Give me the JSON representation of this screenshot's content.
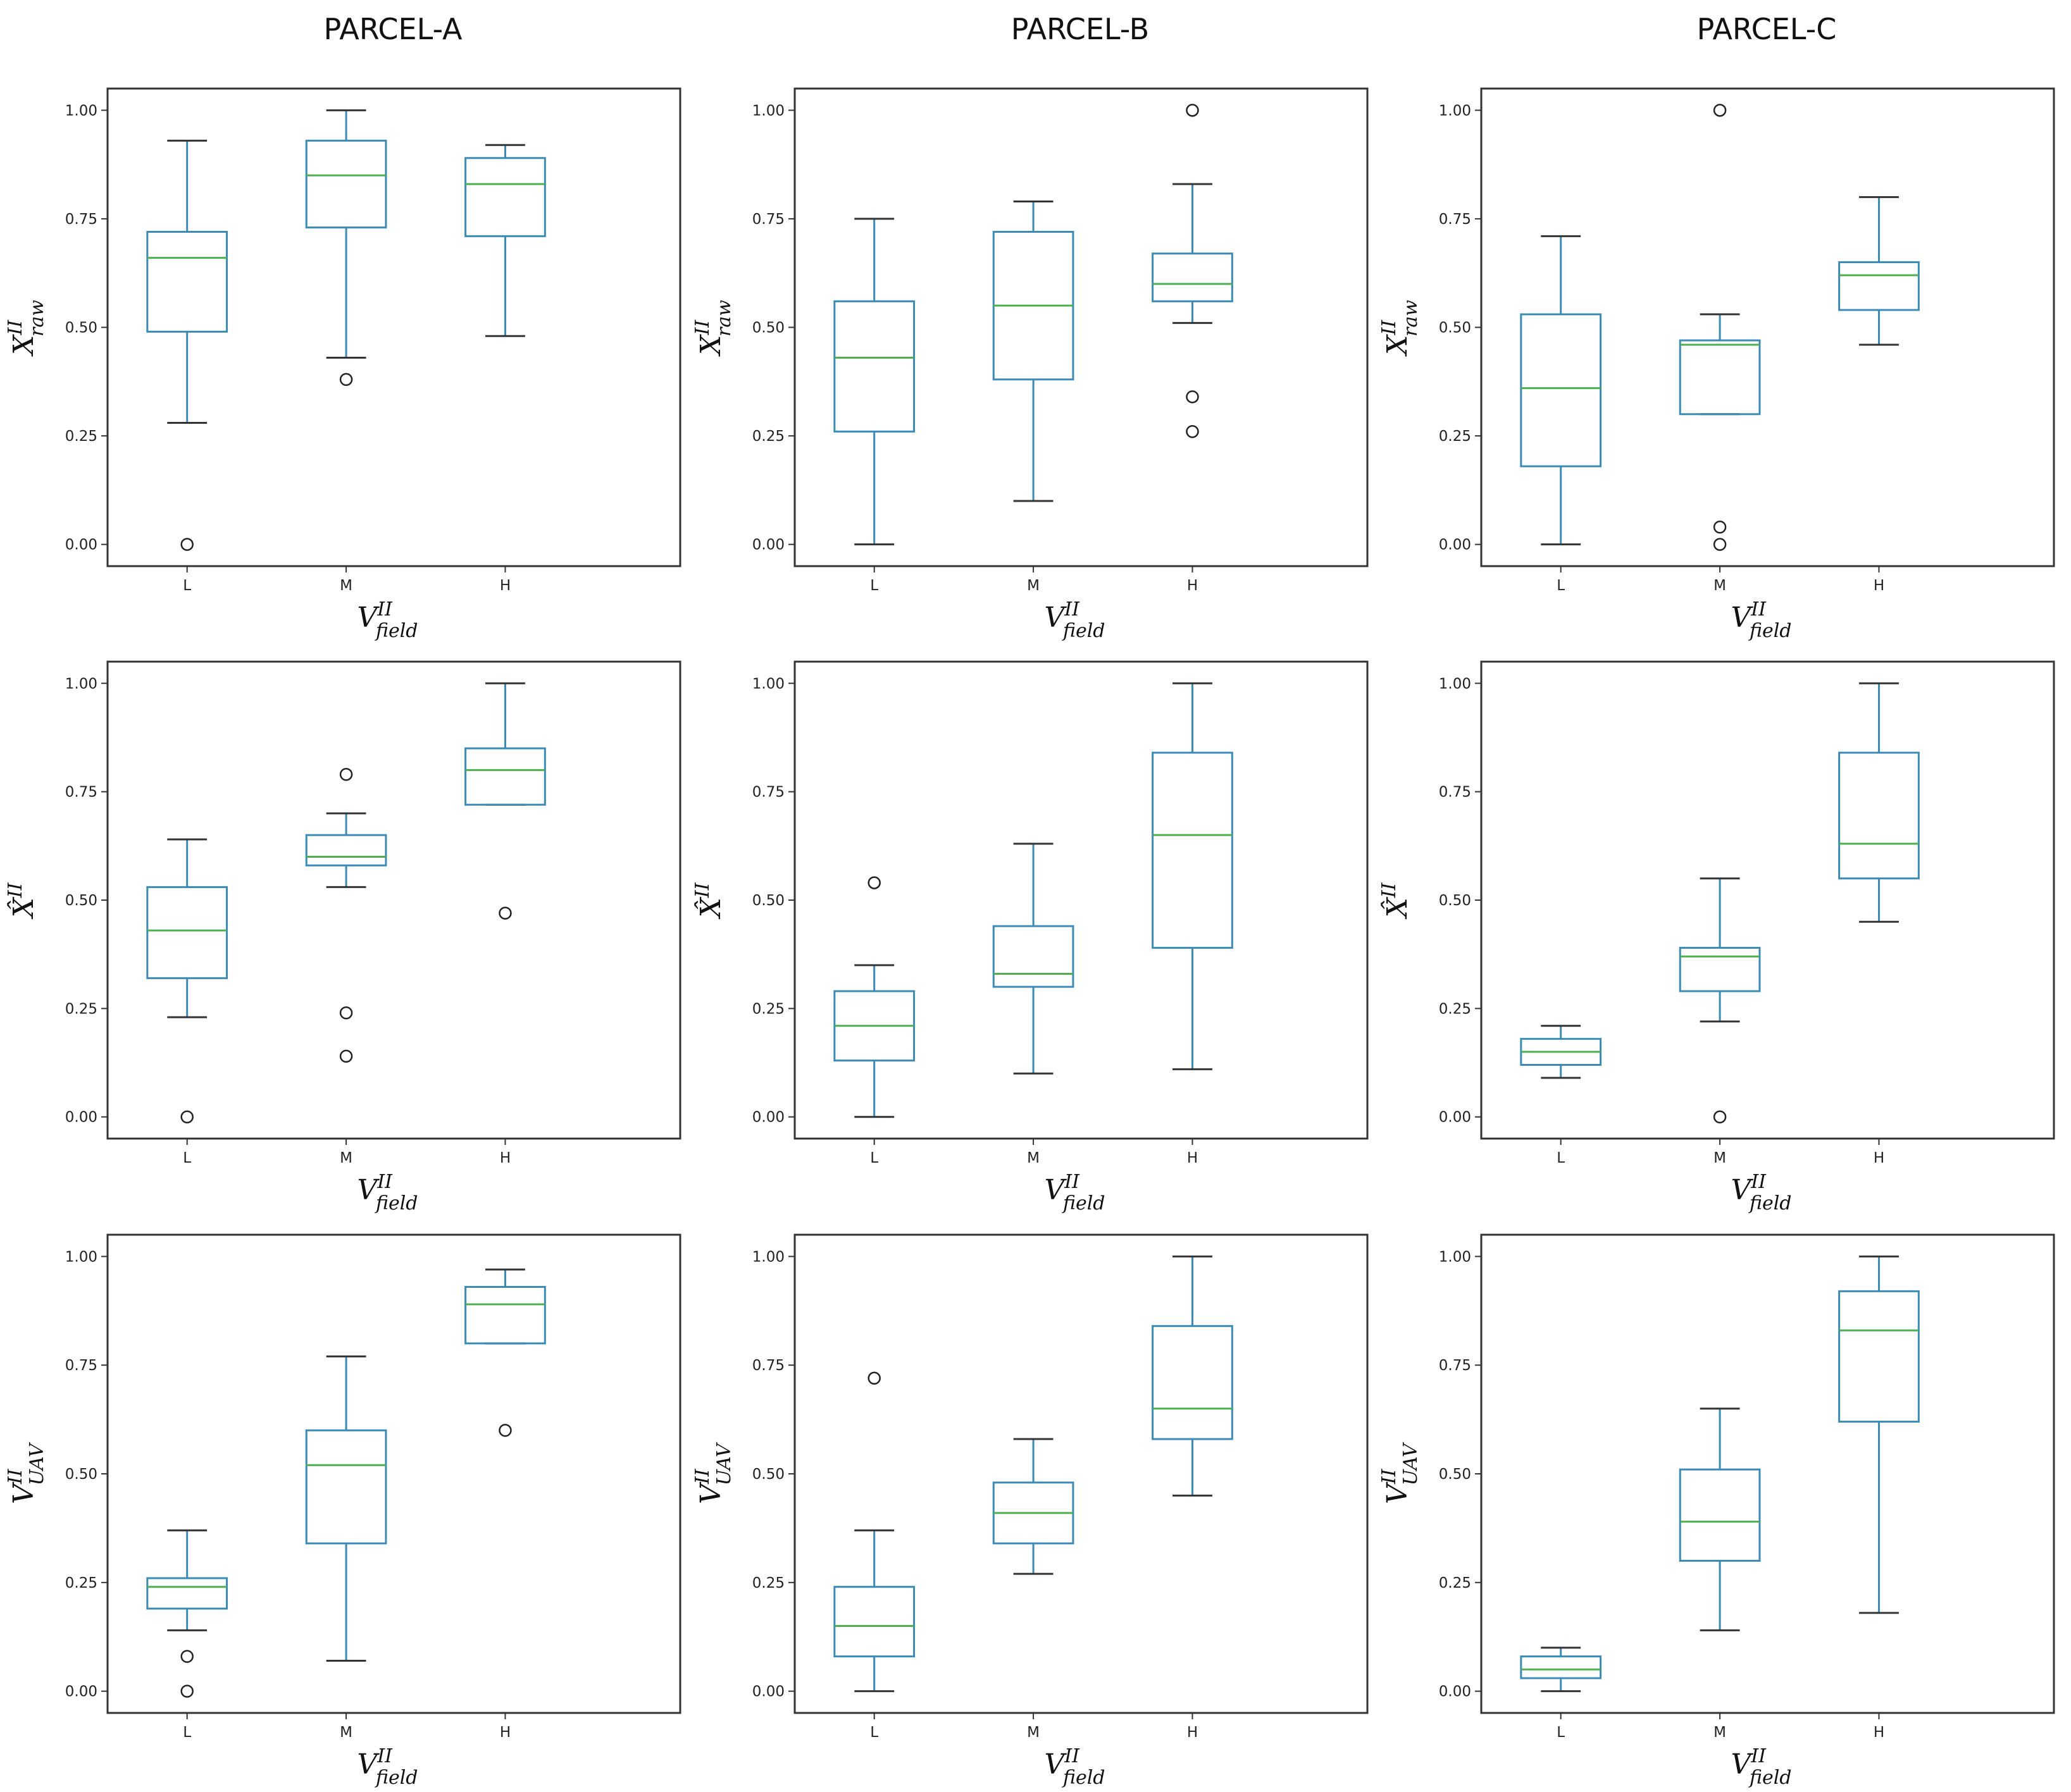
{
  "column_titles": [
    "PARCEL-A",
    "PARCEL-B",
    "PARCEL-C"
  ],
  "colors": {
    "box": "#3b8bb5",
    "median": "#4caf50",
    "frame": "#333333",
    "outlier": "#222222"
  },
  "chart_data": [
    {
      "type": "box",
      "panel": "PARCEL-A raw",
      "categories": [
        "L",
        "M",
        "H"
      ],
      "yticks": [
        "0.00",
        "0.25",
        "0.50",
        "0.75",
        "1.00"
      ],
      "ylim": [
        -0.05,
        1.05
      ],
      "ylabel": {
        "base": "X",
        "sup": "II",
        "sub": "raw"
      },
      "xlabel": {
        "base": "V",
        "sup": "II",
        "sub": "field"
      },
      "boxes": [
        {
          "whislo": 0.28,
          "q1": 0.49,
          "med": 0.66,
          "q3": 0.72,
          "whishi": 0.93,
          "fliers": [
            0.0
          ]
        },
        {
          "whislo": 0.43,
          "q1": 0.73,
          "med": 0.85,
          "q3": 0.93,
          "whishi": 1.0,
          "fliers": [
            0.38
          ]
        },
        {
          "whislo": 0.48,
          "q1": 0.71,
          "med": 0.83,
          "q3": 0.89,
          "whishi": 0.92,
          "fliers": []
        }
      ]
    },
    {
      "type": "box",
      "panel": "PARCEL-B raw",
      "categories": [
        "L",
        "M",
        "H"
      ],
      "yticks": [
        "0.00",
        "0.25",
        "0.50",
        "0.75",
        "1.00"
      ],
      "ylim": [
        -0.05,
        1.05
      ],
      "ylabel": {
        "base": "X",
        "sup": "II",
        "sub": "raw"
      },
      "xlabel": {
        "base": "V",
        "sup": "II",
        "sub": "field"
      },
      "boxes": [
        {
          "whislo": 0.0,
          "q1": 0.26,
          "med": 0.43,
          "q3": 0.56,
          "whishi": 0.75,
          "fliers": []
        },
        {
          "whislo": 0.1,
          "q1": 0.38,
          "med": 0.55,
          "q3": 0.72,
          "whishi": 0.79,
          "fliers": []
        },
        {
          "whislo": 0.51,
          "q1": 0.56,
          "med": 0.6,
          "q3": 0.67,
          "whishi": 0.83,
          "fliers": [
            1.0,
            0.34,
            0.26
          ]
        }
      ]
    },
    {
      "type": "box",
      "panel": "PARCEL-C raw",
      "categories": [
        "L",
        "M",
        "H"
      ],
      "yticks": [
        "0.00",
        "0.25",
        "0.50",
        "0.75",
        "1.00"
      ],
      "ylim": [
        -0.05,
        1.05
      ],
      "ylabel": {
        "base": "X",
        "sup": "II",
        "sub": "raw"
      },
      "xlabel": {
        "base": "V",
        "sup": "II",
        "sub": "field"
      },
      "boxes": [
        {
          "whislo": 0.0,
          "q1": 0.18,
          "med": 0.36,
          "q3": 0.53,
          "whishi": 0.71,
          "fliers": []
        },
        {
          "whislo": 0.3,
          "q1": 0.3,
          "med": 0.46,
          "q3": 0.47,
          "whishi": 0.53,
          "fliers": [
            1.0,
            0.04,
            0.0
          ]
        },
        {
          "whislo": 0.46,
          "q1": 0.54,
          "med": 0.62,
          "q3": 0.65,
          "whishi": 0.8,
          "fliers": []
        }
      ]
    },
    {
      "type": "box",
      "panel": "PARCEL-A hat",
      "categories": [
        "L",
        "M",
        "H"
      ],
      "yticks": [
        "0.00",
        "0.25",
        "0.50",
        "0.75",
        "1.00"
      ],
      "ylim": [
        -0.05,
        1.05
      ],
      "ylabel": {
        "base": "X̂",
        "sup": "II",
        "sub": ""
      },
      "xlabel": {
        "base": "V",
        "sup": "II",
        "sub": "field"
      },
      "boxes": [
        {
          "whislo": 0.23,
          "q1": 0.32,
          "med": 0.43,
          "q3": 0.53,
          "whishi": 0.64,
          "fliers": [
            0.0
          ]
        },
        {
          "whislo": 0.53,
          "q1": 0.58,
          "med": 0.6,
          "q3": 0.65,
          "whishi": 0.7,
          "fliers": [
            0.79,
            0.24,
            0.14
          ]
        },
        {
          "whislo": 0.72,
          "q1": 0.72,
          "med": 0.8,
          "q3": 0.85,
          "whishi": 1.0,
          "fliers": [
            0.47
          ]
        }
      ]
    },
    {
      "type": "box",
      "panel": "PARCEL-B hat",
      "categories": [
        "L",
        "M",
        "H"
      ],
      "yticks": [
        "0.00",
        "0.25",
        "0.50",
        "0.75",
        "1.00"
      ],
      "ylim": [
        -0.05,
        1.05
      ],
      "ylabel": {
        "base": "X̂",
        "sup": "II",
        "sub": ""
      },
      "xlabel": {
        "base": "V",
        "sup": "II",
        "sub": "field"
      },
      "boxes": [
        {
          "whislo": 0.0,
          "q1": 0.13,
          "med": 0.21,
          "q3": 0.29,
          "whishi": 0.35,
          "fliers": [
            0.54
          ]
        },
        {
          "whislo": 0.1,
          "q1": 0.3,
          "med": 0.33,
          "q3": 0.44,
          "whishi": 0.63,
          "fliers": []
        },
        {
          "whislo": 0.11,
          "q1": 0.39,
          "med": 0.65,
          "q3": 0.84,
          "whishi": 1.0,
          "fliers": []
        }
      ]
    },
    {
      "type": "box",
      "panel": "PARCEL-C hat",
      "categories": [
        "L",
        "M",
        "H"
      ],
      "yticks": [
        "0.00",
        "0.25",
        "0.50",
        "0.75",
        "1.00"
      ],
      "ylim": [
        -0.05,
        1.05
      ],
      "ylabel": {
        "base": "X̂",
        "sup": "II",
        "sub": ""
      },
      "xlabel": {
        "base": "V",
        "sup": "II",
        "sub": "field"
      },
      "boxes": [
        {
          "whislo": 0.09,
          "q1": 0.12,
          "med": 0.15,
          "q3": 0.18,
          "whishi": 0.21,
          "fliers": []
        },
        {
          "whislo": 0.22,
          "q1": 0.29,
          "med": 0.37,
          "q3": 0.39,
          "whishi": 0.55,
          "fliers": [
            0.0
          ]
        },
        {
          "whislo": 0.45,
          "q1": 0.55,
          "med": 0.63,
          "q3": 0.84,
          "whishi": 1.0,
          "fliers": []
        }
      ]
    },
    {
      "type": "box",
      "panel": "PARCEL-A UAV",
      "categories": [
        "L",
        "M",
        "H"
      ],
      "yticks": [
        "0.00",
        "0.25",
        "0.50",
        "0.75",
        "1.00"
      ],
      "ylim": [
        -0.05,
        1.05
      ],
      "ylabel": {
        "base": "V",
        "sup": "II",
        "sub": "UAV"
      },
      "xlabel": {
        "base": "V",
        "sup": "II",
        "sub": "field"
      },
      "boxes": [
        {
          "whislo": 0.14,
          "q1": 0.19,
          "med": 0.24,
          "q3": 0.26,
          "whishi": 0.37,
          "fliers": [
            0.08,
            0.0
          ]
        },
        {
          "whislo": 0.07,
          "q1": 0.34,
          "med": 0.52,
          "q3": 0.6,
          "whishi": 0.77,
          "fliers": []
        },
        {
          "whislo": 0.8,
          "q1": 0.8,
          "med": 0.89,
          "q3": 0.93,
          "whishi": 0.97,
          "fliers": [
            0.6
          ]
        }
      ]
    },
    {
      "type": "box",
      "panel": "PARCEL-B UAV",
      "categories": [
        "L",
        "M",
        "H"
      ],
      "yticks": [
        "0.00",
        "0.25",
        "0.50",
        "0.75",
        "1.00"
      ],
      "ylim": [
        -0.05,
        1.05
      ],
      "ylabel": {
        "base": "V",
        "sup": "II",
        "sub": "UAV"
      },
      "xlabel": {
        "base": "V",
        "sup": "II",
        "sub": "field"
      },
      "boxes": [
        {
          "whislo": 0.0,
          "q1": 0.08,
          "med": 0.15,
          "q3": 0.24,
          "whishi": 0.37,
          "fliers": [
            0.72
          ]
        },
        {
          "whislo": 0.27,
          "q1": 0.34,
          "med": 0.41,
          "q3": 0.48,
          "whishi": 0.58,
          "fliers": []
        },
        {
          "whislo": 0.45,
          "q1": 0.58,
          "med": 0.65,
          "q3": 0.84,
          "whishi": 1.0,
          "fliers": []
        }
      ]
    },
    {
      "type": "box",
      "panel": "PARCEL-C UAV",
      "categories": [
        "L",
        "M",
        "H"
      ],
      "yticks": [
        "0.00",
        "0.25",
        "0.50",
        "0.75",
        "1.00"
      ],
      "ylim": [
        -0.05,
        1.05
      ],
      "ylabel": {
        "base": "V",
        "sup": "II",
        "sub": "UAV"
      },
      "xlabel": {
        "base": "V",
        "sup": "II",
        "sub": "field"
      },
      "boxes": [
        {
          "whislo": 0.0,
          "q1": 0.03,
          "med": 0.05,
          "q3": 0.08,
          "whishi": 0.1,
          "fliers": []
        },
        {
          "whislo": 0.14,
          "q1": 0.3,
          "med": 0.39,
          "q3": 0.51,
          "whishi": 0.65,
          "fliers": []
        },
        {
          "whislo": 0.18,
          "q1": 0.62,
          "med": 0.83,
          "q3": 0.92,
          "whishi": 1.0,
          "fliers": []
        }
      ]
    }
  ]
}
